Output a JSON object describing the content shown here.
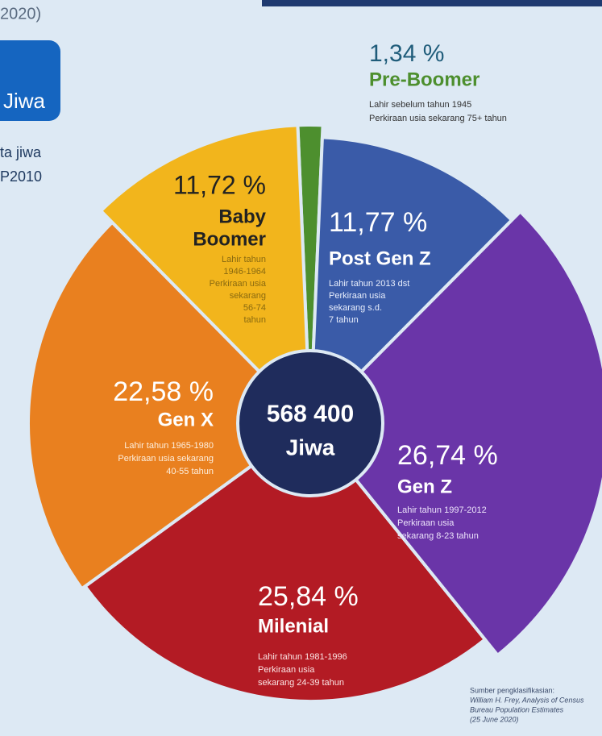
{
  "header": {
    "year_fragment": "2020)",
    "box_text": "Jiwa",
    "note_lines": [
      "ta jiwa",
      "P2010"
    ]
  },
  "chart_data": {
    "type": "pie",
    "center_lines": [
      "568 400",
      "Jiwa"
    ],
    "categories": [
      [
        "Pre-Boomer"
      ],
      [
        "Post Gen Z"
      ],
      [
        "Gen Z"
      ],
      [
        "Milenial"
      ],
      [
        "Gen X"
      ],
      [
        "Baby",
        "Boomer"
      ]
    ],
    "values": [
      1.34,
      11.77,
      26.74,
      25.84,
      22.58,
      11.72
    ],
    "value_labels": [
      "1,34 %",
      "11,77 %",
      "26,74 %",
      "25,84 %",
      "22,58 %",
      "11,72 %"
    ],
    "colors": [
      "#4d8f2e",
      "#3a5ba8",
      "#6a35a8",
      "#b31b24",
      "#e9801f",
      "#f2b51c"
    ],
    "descriptions": [
      [
        "Lahir sebelum tahun 1945",
        "Perkiraan usia sekarang 75+ tahun"
      ],
      [
        "Lahir tahun 2013 dst",
        "Perkiraan usia",
        "sekarang s.d.",
        "7 tahun"
      ],
      [
        "Lahir tahun 1997-2012",
        "Perkiraan usia",
        "sekarang 8-23 tahun"
      ],
      [
        "Lahir tahun 1981-1996",
        "Perkiraan usia",
        "sekarang 24-39 tahun"
      ],
      [
        "Lahir tahun 1965-1980",
        "Perkiraan usia sekarang",
        "40-55 tahun"
      ],
      [
        "Lahir tahun",
        "1946-1964",
        "Perkiraan usia",
        "sekarang",
        "56-74",
        "tahun"
      ]
    ]
  },
  "source_lines": [
    "Sumber pengklasifikasian:",
    "William H. Frey, Analysis of Census",
    "Bureau Population Estimates",
    "(25 June 2020)"
  ]
}
